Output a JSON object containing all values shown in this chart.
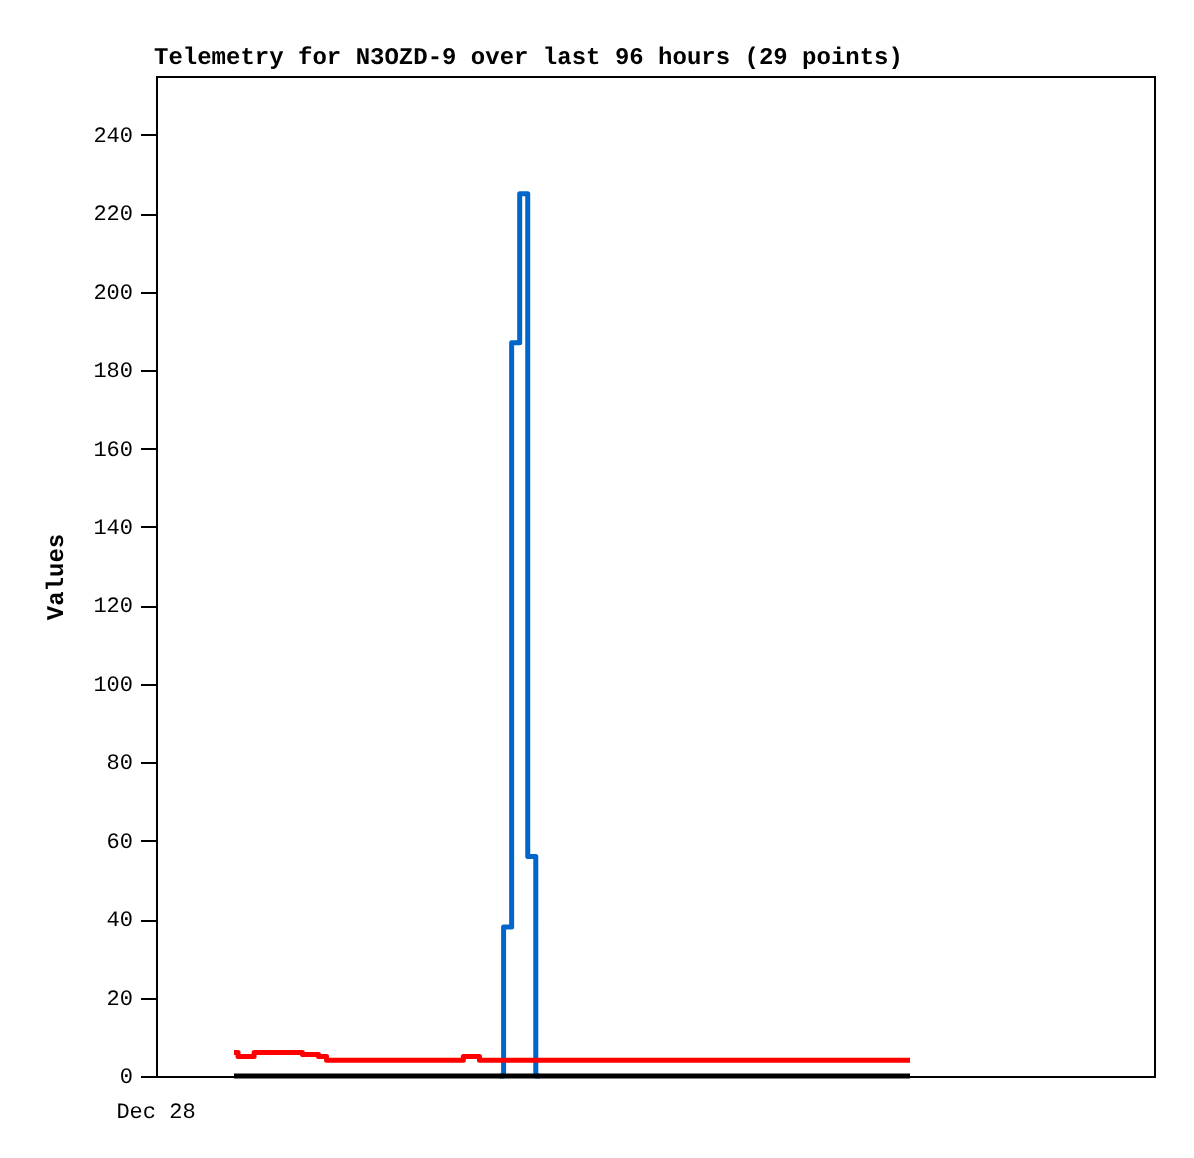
{
  "chart_data": {
    "type": "step",
    "title": "Telemetry for N3OZD-9 over last 96 hours (29 points)",
    "ylabel": "Values",
    "annotations": [
      "Dec 28"
    ],
    "categories": [
      null,
      null,
      null,
      null,
      null,
      null,
      null,
      null,
      null,
      null,
      null,
      null,
      null,
      null,
      null,
      null,
      null,
      null,
      null,
      null,
      null,
      null,
      null,
      null,
      null,
      null,
      null,
      null,
      null,
      null,
      null,
      null,
      null,
      null,
      null,
      null,
      null,
      null,
      null,
      null,
      null,
      null,
      null,
      null,
      null,
      null,
      null,
      null,
      null,
      null,
      null,
      null,
      null,
      null,
      null,
      null,
      null,
      null,
      null,
      null,
      null,
      null,
      null,
      null,
      null,
      null,
      null,
      null,
      null,
      null,
      null,
      null,
      null,
      null,
      null,
      null,
      null,
      null,
      null,
      null,
      null,
      null,
      null,
      null,
      null
    ],
    "series": [
      {
        "color": "#0066cc",
        "values": [
          null,
          null,
          null,
          null,
          null,
          null,
          null,
          null,
          null,
          null,
          null,
          null,
          null,
          null,
          null,
          null,
          null,
          null,
          null,
          null,
          null,
          null,
          null,
          null,
          null,
          null,
          null,
          null,
          null,
          null,
          null,
          null,
          null,
          0,
          38,
          187,
          225,
          56,
          0,
          null,
          null,
          null,
          null,
          null,
          null,
          null,
          null,
          null,
          null,
          null,
          null,
          null,
          null,
          null,
          null,
          null,
          null,
          null,
          null,
          null,
          null,
          null,
          null,
          null,
          null,
          null,
          null,
          null,
          null,
          null,
          null,
          null,
          null,
          null,
          null,
          null,
          null,
          null,
          null,
          null,
          null,
          null,
          null,
          null,
          null
        ]
      },
      {
        "color": "#ff0000",
        "values": [
          6,
          5,
          5,
          6,
          6,
          6,
          6,
          6,
          6,
          5.5,
          5.5,
          5,
          4,
          4,
          4,
          4,
          4,
          4,
          4,
          4,
          4,
          4,
          4,
          4,
          4,
          4,
          4,
          4,
          4,
          5,
          5,
          4,
          4,
          4,
          4,
          4,
          4,
          4,
          4,
          4,
          4,
          4,
          4,
          4,
          4,
          4,
          4,
          4,
          4,
          4,
          4,
          4,
          4,
          4,
          4,
          4,
          4,
          4,
          4,
          4,
          4,
          4,
          4,
          4,
          4,
          4,
          4,
          4,
          4,
          4,
          4,
          4,
          4,
          4,
          4,
          4,
          4,
          4,
          4,
          4,
          4,
          4,
          4,
          4,
          4
        ]
      },
      {
        "color": "#000000",
        "values": [
          0,
          0,
          0,
          0,
          0,
          0,
          0,
          0,
          0,
          0,
          0,
          0,
          0,
          0,
          0,
          0,
          0,
          0,
          0,
          0,
          0,
          0,
          0,
          0,
          0,
          0,
          0,
          0,
          0,
          0,
          0,
          0,
          0,
          0,
          0,
          0,
          0,
          0,
          0,
          0,
          0,
          0,
          0,
          0,
          0,
          0,
          0,
          0,
          0,
          0,
          0,
          0,
          0,
          0,
          0,
          0,
          0,
          0,
          0,
          0,
          0,
          0,
          0,
          0,
          0,
          0,
          0,
          0,
          0,
          0,
          0,
          0,
          0,
          0,
          0,
          0,
          0,
          0,
          0,
          0,
          0,
          0,
          0,
          0,
          0
        ]
      }
    ],
    "ylim": [
      0,
      255
    ],
    "yticks": [
      0,
      20,
      40,
      60,
      80,
      100,
      120,
      140,
      160,
      180,
      200,
      220,
      240
    ],
    "grid": false,
    "line_style": "solid"
  }
}
